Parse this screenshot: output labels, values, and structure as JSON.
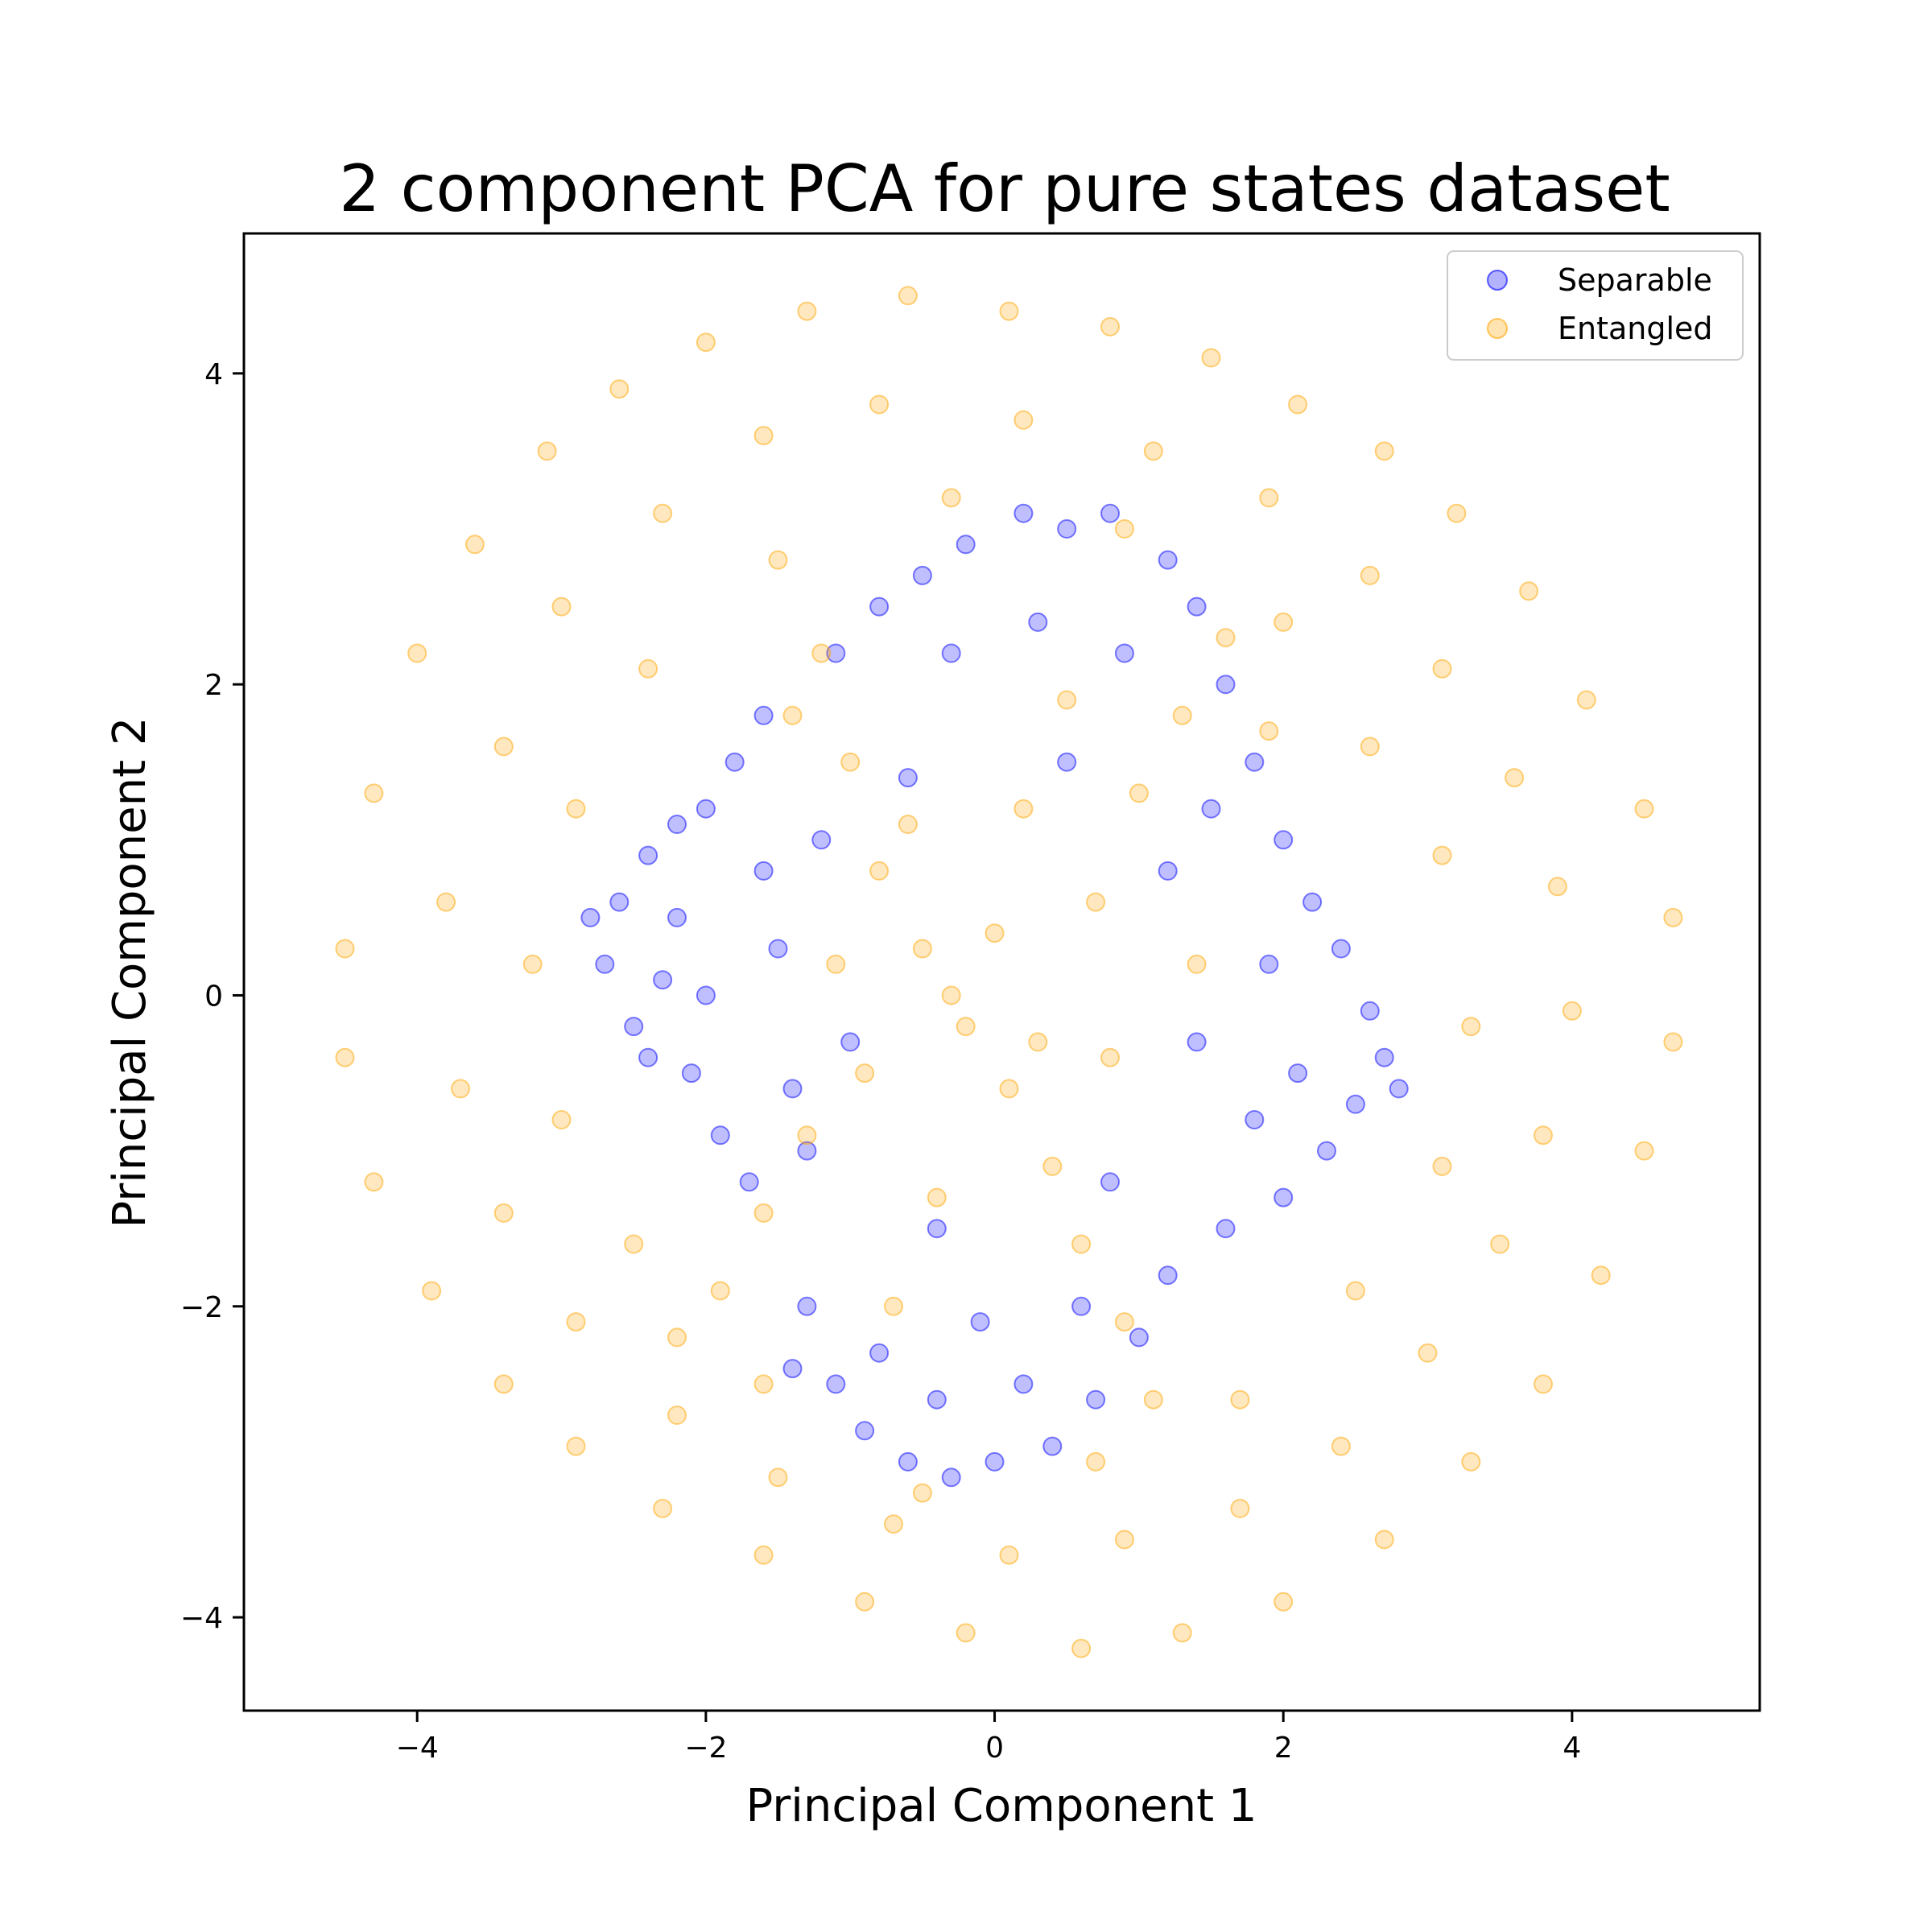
{
  "chart_data": {
    "type": "scatter",
    "title": "2 component PCA for pure states dataset",
    "xlabel": "Principal Component 1",
    "ylabel": "Principal Component 2",
    "xlim": [
      -5.2,
      5.3
    ],
    "ylim": [
      -4.6,
      4.9
    ],
    "xticks": [
      -4,
      -2,
      0,
      2,
      4
    ],
    "yticks": [
      -4,
      -2,
      0,
      2,
      4
    ],
    "grid": false,
    "legend_position": "top-right",
    "marker_alpha": 0.25,
    "series": [
      {
        "name": "Separable",
        "color": "#0000ff",
        "points": [
          [
            -2.6,
            0.6
          ],
          [
            -2.4,
            0.9
          ],
          [
            -2.7,
            0.2
          ],
          [
            -2.2,
            0.5
          ],
          [
            -2.5,
            -0.2
          ],
          [
            -2.3,
            0.1
          ],
          [
            -2.0,
            1.2
          ],
          [
            -1.8,
            1.5
          ],
          [
            -2.1,
            -0.5
          ],
          [
            -1.9,
            -0.9
          ],
          [
            -2.4,
            -0.4
          ],
          [
            -1.6,
            1.8
          ],
          [
            -1.7,
            -1.2
          ],
          [
            -2.2,
            1.1
          ],
          [
            -1.5,
            0.3
          ],
          [
            -1.4,
            -0.6
          ],
          [
            -1.2,
            1.0
          ],
          [
            -1.3,
            -1.0
          ],
          [
            -2.8,
            0.5
          ],
          [
            -2.0,
            0.0
          ],
          [
            -1.1,
            2.2
          ],
          [
            -0.8,
            2.5
          ],
          [
            -0.5,
            2.7
          ],
          [
            -0.2,
            2.9
          ],
          [
            0.2,
            3.1
          ],
          [
            0.5,
            3.0
          ],
          [
            0.8,
            3.1
          ],
          [
            1.2,
            2.8
          ],
          [
            1.4,
            2.5
          ],
          [
            0.3,
            2.4
          ],
          [
            -0.3,
            2.2
          ],
          [
            0.9,
            2.2
          ],
          [
            1.6,
            2.0
          ],
          [
            1.8,
            1.5
          ],
          [
            2.0,
            1.0
          ],
          [
            2.2,
            0.6
          ],
          [
            2.4,
            0.3
          ],
          [
            2.6,
            -0.1
          ],
          [
            2.7,
            -0.4
          ],
          [
            2.5,
            -0.7
          ],
          [
            2.3,
            -1.0
          ],
          [
            2.0,
            -1.3
          ],
          [
            1.8,
            -0.8
          ],
          [
            1.6,
            -1.5
          ],
          [
            1.4,
            -0.3
          ],
          [
            1.9,
            0.2
          ],
          [
            2.1,
            -0.5
          ],
          [
            1.2,
            -1.8
          ],
          [
            1.0,
            -2.2
          ],
          [
            0.7,
            -2.6
          ],
          [
            0.4,
            -2.9
          ],
          [
            0.0,
            -3.0
          ],
          [
            -0.3,
            -3.1
          ],
          [
            -0.6,
            -3.0
          ],
          [
            -0.9,
            -2.8
          ],
          [
            -1.1,
            -2.5
          ],
          [
            -1.4,
            -2.4
          ],
          [
            -1.3,
            -2.0
          ],
          [
            -0.8,
            -2.3
          ],
          [
            -0.4,
            -2.6
          ],
          [
            0.2,
            -2.5
          ],
          [
            0.6,
            -2.0
          ],
          [
            -0.1,
            -2.1
          ],
          [
            1.2,
            0.8
          ],
          [
            -1.0,
            -0.3
          ],
          [
            0.5,
            1.5
          ],
          [
            -0.6,
            1.4
          ],
          [
            0.8,
            -1.2
          ],
          [
            -0.4,
            -1.5
          ],
          [
            1.5,
            1.2
          ],
          [
            -1.6,
            0.8
          ],
          [
            2.8,
            -0.6
          ]
        ]
      },
      {
        "name": "Entangled",
        "color": "#ffa500",
        "points": [
          [
            -4.5,
            0.3
          ],
          [
            -4.3,
            1.3
          ],
          [
            -4.0,
            2.2
          ],
          [
            -3.6,
            2.9
          ],
          [
            -3.1,
            3.5
          ],
          [
            -2.6,
            3.9
          ],
          [
            -2.0,
            4.2
          ],
          [
            -1.3,
            4.4
          ],
          [
            -0.6,
            4.5
          ],
          [
            0.1,
            4.4
          ],
          [
            0.8,
            4.3
          ],
          [
            1.5,
            4.1
          ],
          [
            2.1,
            3.8
          ],
          [
            2.7,
            3.5
          ],
          [
            3.2,
            3.1
          ],
          [
            3.7,
            2.6
          ],
          [
            4.1,
            1.9
          ],
          [
            4.5,
            1.2
          ],
          [
            4.7,
            0.5
          ],
          [
            4.7,
            -0.3
          ],
          [
            4.5,
            -1.0
          ],
          [
            4.2,
            -1.8
          ],
          [
            3.8,
            -2.5
          ],
          [
            3.3,
            -3.0
          ],
          [
            2.7,
            -3.5
          ],
          [
            2.0,
            -3.9
          ],
          [
            1.3,
            -4.1
          ],
          [
            0.6,
            -4.2
          ],
          [
            -0.2,
            -4.1
          ],
          [
            -0.9,
            -3.9
          ],
          [
            -1.6,
            -3.6
          ],
          [
            -2.3,
            -3.3
          ],
          [
            -2.9,
            -2.9
          ],
          [
            -3.4,
            -2.5
          ],
          [
            -3.9,
            -1.9
          ],
          [
            -4.3,
            -1.2
          ],
          [
            -4.5,
            -0.4
          ],
          [
            -3.8,
            0.6
          ],
          [
            -3.4,
            1.6
          ],
          [
            -3.0,
            2.5
          ],
          [
            -2.3,
            3.1
          ],
          [
            -1.6,
            3.6
          ],
          [
            -0.8,
            3.8
          ],
          [
            0.2,
            3.7
          ],
          [
            1.1,
            3.5
          ],
          [
            1.9,
            3.2
          ],
          [
            2.6,
            2.7
          ],
          [
            3.1,
            2.1
          ],
          [
            3.6,
            1.4
          ],
          [
            3.9,
            0.7
          ],
          [
            4.0,
            -0.1
          ],
          [
            3.8,
            -0.9
          ],
          [
            3.5,
            -1.6
          ],
          [
            3.0,
            -2.3
          ],
          [
            2.4,
            -2.9
          ],
          [
            1.7,
            -3.3
          ],
          [
            0.9,
            -3.5
          ],
          [
            0.1,
            -3.6
          ],
          [
            -0.7,
            -3.4
          ],
          [
            -1.5,
            -3.1
          ],
          [
            -2.2,
            -2.7
          ],
          [
            -2.9,
            -2.1
          ],
          [
            -3.4,
            -1.4
          ],
          [
            -3.7,
            -0.6
          ],
          [
            -3.2,
            0.2
          ],
          [
            -2.9,
            1.2
          ],
          [
            -2.4,
            2.1
          ],
          [
            -1.5,
            2.8
          ],
          [
            -0.3,
            3.2
          ],
          [
            0.9,
            3.0
          ],
          [
            2.0,
            2.4
          ],
          [
            2.6,
            1.6
          ],
          [
            3.1,
            0.9
          ],
          [
            3.3,
            -0.2
          ],
          [
            3.1,
            -1.1
          ],
          [
            2.5,
            -1.9
          ],
          [
            1.7,
            -2.6
          ],
          [
            0.7,
            -3.0
          ],
          [
            -0.5,
            -3.2
          ],
          [
            -1.6,
            -2.5
          ],
          [
            -2.5,
            -1.6
          ],
          [
            -3.0,
            -0.8
          ],
          [
            -1.2,
            2.2
          ],
          [
            -1.0,
            1.5
          ],
          [
            -0.8,
            0.8
          ],
          [
            -0.5,
            0.3
          ],
          [
            -0.2,
            -0.2
          ],
          [
            0.1,
            -0.6
          ],
          [
            0.4,
            -1.1
          ],
          [
            0.6,
            -1.6
          ],
          [
            0.9,
            -2.1
          ],
          [
            1.1,
            -2.6
          ],
          [
            -0.6,
            1.1
          ],
          [
            -0.3,
            0.0
          ],
          [
            0.0,
            0.4
          ],
          [
            0.3,
            -0.3
          ],
          [
            0.7,
            0.6
          ],
          [
            1.0,
            1.3
          ],
          [
            1.3,
            1.8
          ],
          [
            1.6,
            2.3
          ],
          [
            -1.3,
            -0.9
          ],
          [
            -1.6,
            -1.4
          ],
          [
            -1.9,
            -1.9
          ],
          [
            -2.2,
            -2.2
          ],
          [
            -0.9,
            -0.5
          ],
          [
            1.4,
            0.2
          ],
          [
            0.5,
            1.9
          ],
          [
            -0.4,
            -1.3
          ],
          [
            -1.1,
            0.2
          ],
          [
            0.2,
            1.2
          ],
          [
            0.8,
            -0.4
          ],
          [
            -0.7,
            -2.0
          ],
          [
            1.9,
            1.7
          ],
          [
            -1.4,
            1.8
          ]
        ]
      }
    ]
  }
}
